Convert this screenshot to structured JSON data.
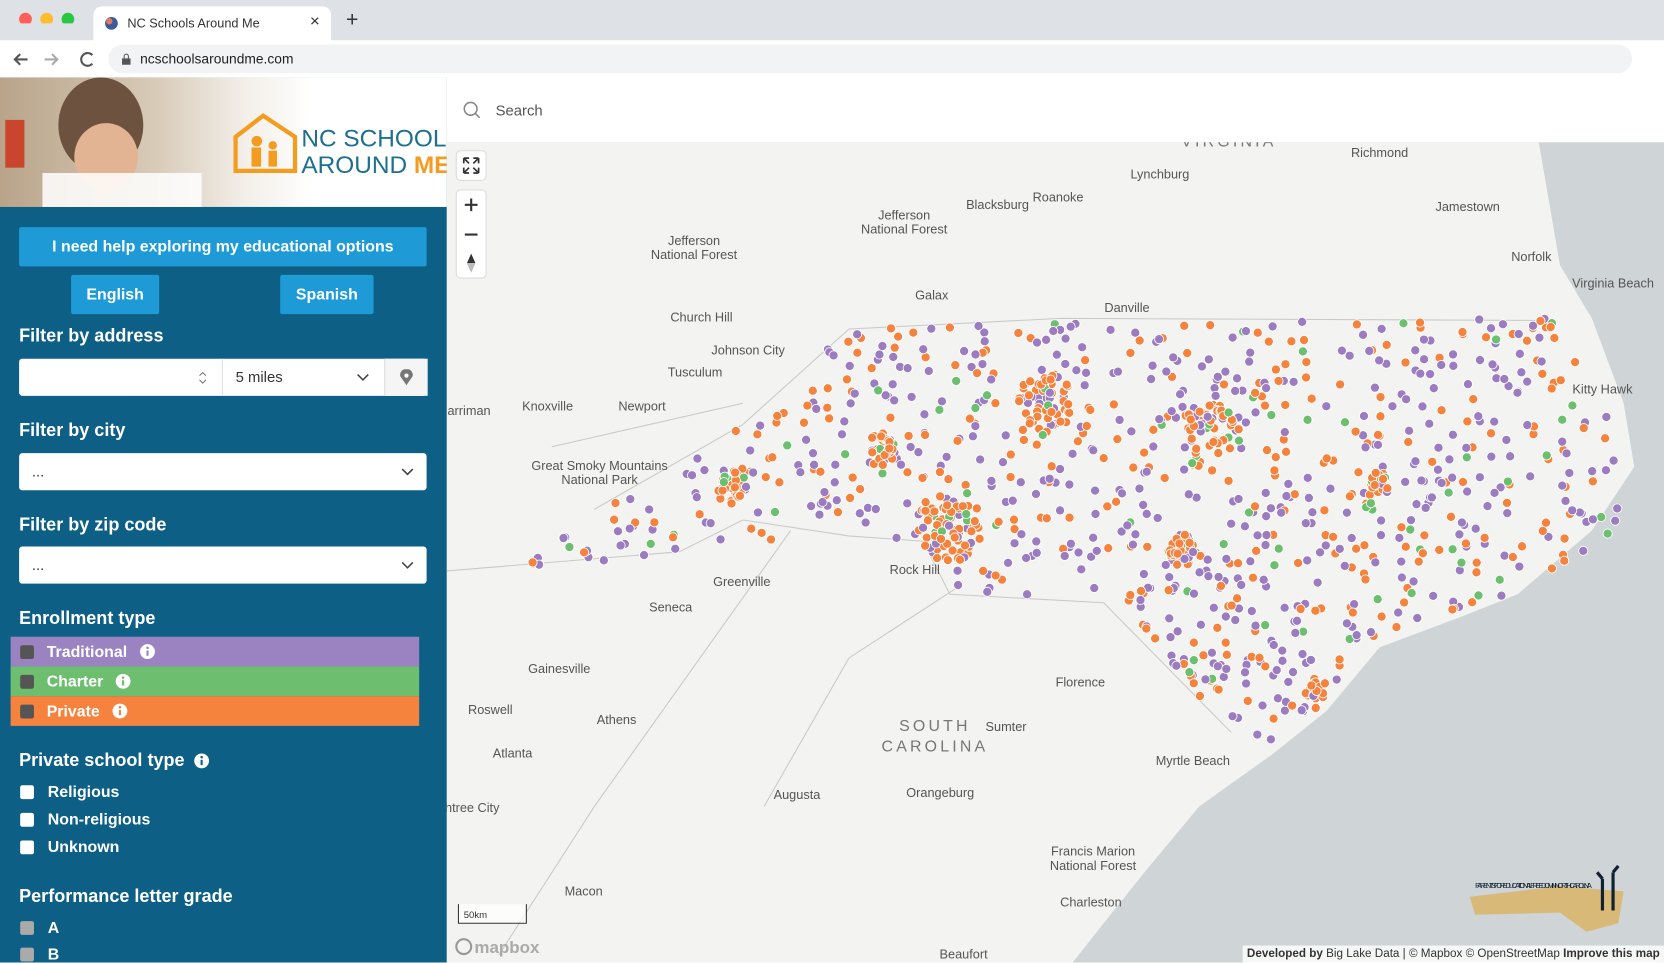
{
  "browser": {
    "tab_title": "NC Schools Around Me",
    "url": "ncschoolsaroundme.com"
  },
  "sidebar": {
    "logo": {
      "line1": "NC SCHOOLS",
      "line2": "AROUND",
      "line2_accent": "ME"
    },
    "help_button": "I need help exploring my educational options",
    "languages": [
      "English",
      "Spanish"
    ],
    "address": {
      "title": "Filter by address",
      "distance": "5 miles"
    },
    "city": {
      "title": "Filter by city",
      "value": "..."
    },
    "zip": {
      "title": "Filter by zip code",
      "value": "..."
    },
    "enrollment": {
      "title": "Enrollment type",
      "options": [
        "Traditional",
        "Charter",
        "Private"
      ]
    },
    "private_type": {
      "title": "Private school type",
      "options": [
        "Religious",
        "Non-religious",
        "Unknown"
      ]
    },
    "performance": {
      "title": "Performance letter grade",
      "options": [
        "A",
        "B"
      ]
    }
  },
  "map": {
    "search_placeholder": "Search",
    "labels": [
      "VIRGINIA",
      "Richmond",
      "Lynchburg",
      "Roanoke",
      "Blacksburg",
      "Jefferson",
      "National Forest",
      "Jamestown",
      "Norfolk",
      "Virginia Beach",
      "Galax",
      "Danville",
      "Church Hill",
      "Johnson City",
      "Tusculum",
      "Jefferson",
      "National Forest",
      "Knoxville",
      "Newport",
      "arriman",
      "Great Smoky Mountains",
      "National Park",
      "Kitty Hawk",
      "Greenville",
      "Seneca",
      "Rock Hill",
      "Gainesville",
      "Roswell",
      "Athens",
      "Atlanta",
      "Florence",
      "SOUTH",
      "CAROLINA",
      "Sumter",
      "Myrtle Beach",
      "Orangeburg",
      "Augusta",
      "htree City",
      "Macon",
      "Francis Marion",
      "National Forest",
      "Charleston",
      "Beaufort"
    ],
    "scale": "50km",
    "brand": "mapbox",
    "partner_logo": "PARENTS FOR EDUCATIONAL FREEDOM IN NORTH CAROLINA",
    "attribution": {
      "prefix": "Developed by",
      "developer": "Big Lake Data",
      "credits": "| © Mapbox © OpenStreetMap",
      "improve": "Improve this map"
    }
  }
}
